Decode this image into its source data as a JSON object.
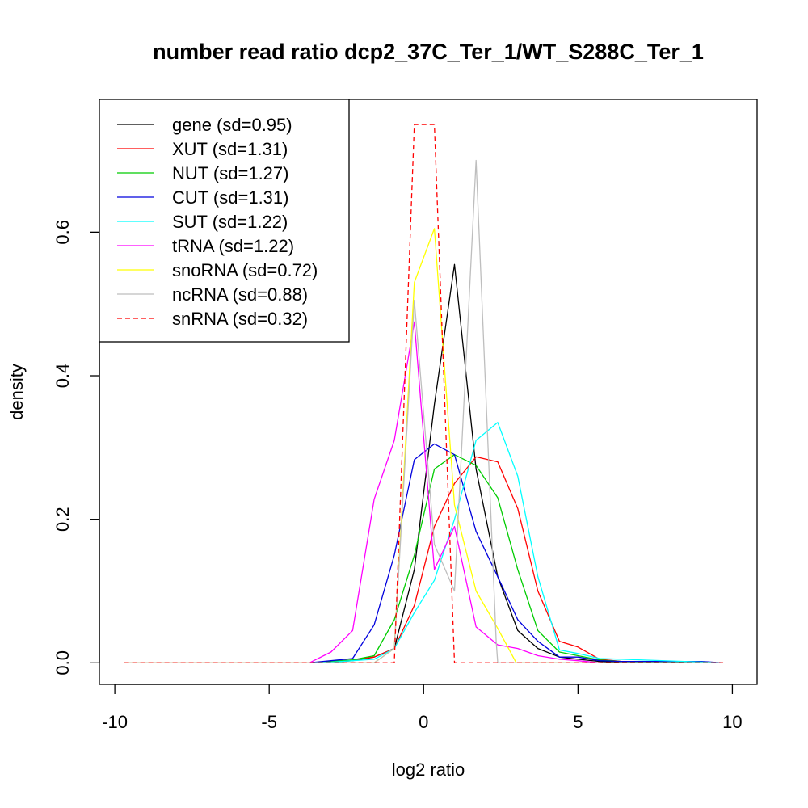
{
  "chart_data": {
    "type": "line",
    "title": "number read ratio dcp2_37C_Ter_1/WT_S288C_Ter_1",
    "xlabel": "log2 ratio",
    "ylabel": "density",
    "xlim": [
      -10.5,
      10.8
    ],
    "ylim": [
      -0.03,
      0.785
    ],
    "xticks": [
      -10,
      -5,
      0,
      5,
      10
    ],
    "xtick_labels": [
      "-10",
      "-5",
      "0",
      "5",
      "10"
    ],
    "yticks": [
      0.0,
      0.2,
      0.4,
      0.6
    ],
    "ytick_labels": [
      "0.0",
      "0.2",
      "0.4",
      "0.6"
    ],
    "grid": false,
    "legend_position": "top-left",
    "series": [
      {
        "name": "gene (sd=0.95)",
        "color": "#000000",
        "dash": "solid",
        "x": [
          -9.7,
          -3.7,
          -3.0,
          -2.3,
          -1.6,
          -0.95,
          -0.3,
          0.35,
          1.0,
          1.7,
          2.4,
          3.05,
          3.7,
          4.4,
          5.0,
          5.7,
          6.4,
          9.0,
          9.7
        ],
        "y": [
          0,
          0,
          0.001,
          0.003,
          0.008,
          0.02,
          0.13,
          0.36,
          0.555,
          0.27,
          0.12,
          0.045,
          0.02,
          0.008,
          0.005,
          0.002,
          0.001,
          0.001,
          0
        ]
      },
      {
        "name": "XUT (sd=1.31)",
        "color": "#ff0000",
        "dash": "solid",
        "x": [
          -9.7,
          -3.7,
          -3.0,
          -2.3,
          -1.6,
          -0.95,
          -0.3,
          0.35,
          1.0,
          1.7,
          2.4,
          3.05,
          3.7,
          4.4,
          5.0,
          5.7,
          6.4,
          9.7
        ],
        "y": [
          0,
          0,
          0.002,
          0.004,
          0.008,
          0.02,
          0.08,
          0.19,
          0.25,
          0.287,
          0.28,
          0.215,
          0.1,
          0.03,
          0.022,
          0.005,
          0.002,
          0
        ]
      },
      {
        "name": "NUT (sd=1.27)",
        "color": "#00cc00",
        "dash": "solid",
        "x": [
          -9.7,
          -3.7,
          -3.0,
          -2.3,
          -1.6,
          -0.95,
          -0.3,
          0.35,
          1.0,
          1.7,
          2.4,
          3.05,
          3.7,
          4.4,
          5.0,
          5.7,
          6.4,
          9.7
        ],
        "y": [
          0,
          0,
          0.002,
          0.004,
          0.01,
          0.06,
          0.15,
          0.27,
          0.29,
          0.275,
          0.23,
          0.13,
          0.045,
          0.015,
          0.01,
          0.004,
          0.002,
          0
        ]
      },
      {
        "name": "CUT (sd=1.31)",
        "color": "#0000dd",
        "dash": "solid",
        "x": [
          -9.7,
          -3.7,
          -3.0,
          -2.3,
          -1.6,
          -0.95,
          -0.3,
          0.35,
          1.0,
          1.7,
          2.4,
          3.05,
          3.7,
          4.4,
          5.0,
          5.7,
          6.4,
          9.0,
          9.7
        ],
        "y": [
          0,
          0,
          0.003,
          0.006,
          0.053,
          0.15,
          0.283,
          0.305,
          0.29,
          0.183,
          0.12,
          0.06,
          0.03,
          0.008,
          0.008,
          0.003,
          0.002,
          0.002,
          0
        ]
      },
      {
        "name": "SUT (sd=1.22)",
        "color": "#00ffff",
        "dash": "solid",
        "x": [
          -9.7,
          -3.7,
          -3.0,
          -2.3,
          -1.6,
          -0.95,
          -0.3,
          0.35,
          1.0,
          1.7,
          2.4,
          3.05,
          3.7,
          4.4,
          5.0,
          5.7,
          6.4,
          9.7
        ],
        "y": [
          0,
          0,
          0.001,
          0.003,
          0.005,
          0.02,
          0.07,
          0.115,
          0.2,
          0.31,
          0.335,
          0.26,
          0.12,
          0.018,
          0.013,
          0.006,
          0.005,
          0
        ]
      },
      {
        "name": "tRNA (sd=1.22)",
        "color": "#ff00ff",
        "dash": "solid",
        "x": [
          -9.7,
          -3.7,
          -3.0,
          -2.3,
          -1.6,
          -0.95,
          -0.3,
          0.35,
          1.0,
          1.7,
          2.4,
          3.05,
          3.7,
          4.4,
          5.0,
          5.7,
          9.7
        ],
        "y": [
          0,
          0,
          0.015,
          0.045,
          0.228,
          0.31,
          0.475,
          0.13,
          0.19,
          0.05,
          0.025,
          0.02,
          0.01,
          0.005,
          0.003,
          0,
          0
        ]
      },
      {
        "name": "snoRNA (sd=0.72)",
        "color": "#ffff00",
        "dash": "solid",
        "x": [
          -9.7,
          -3.7,
          -1.6,
          -0.95,
          -0.3,
          0.35,
          1.0,
          1.7,
          2.4,
          3.0,
          9.7
        ],
        "y": [
          0,
          0,
          0,
          0.02,
          0.53,
          0.605,
          0.22,
          0.1,
          0.048,
          0,
          0
        ]
      },
      {
        "name": "ncRNA (sd=0.88)",
        "color": "#bebebe",
        "dash": "solid",
        "x": [
          -9.7,
          -3.7,
          -1.6,
          -0.95,
          -0.3,
          0.35,
          1.0,
          1.7,
          2.35,
          2.4,
          9.7
        ],
        "y": [
          0,
          0,
          0,
          0.02,
          0.505,
          0.165,
          0.1,
          0.7,
          0.03,
          0,
          0
        ]
      },
      {
        "name": "snRNA (sd=0.32)",
        "color": "#ff0000",
        "dash": "dashed",
        "x": [
          -9.7,
          -0.95,
          -0.3,
          0.35,
          1.0,
          9.7
        ],
        "y": [
          0,
          0,
          0.75,
          0.75,
          0,
          0
        ]
      }
    ]
  }
}
